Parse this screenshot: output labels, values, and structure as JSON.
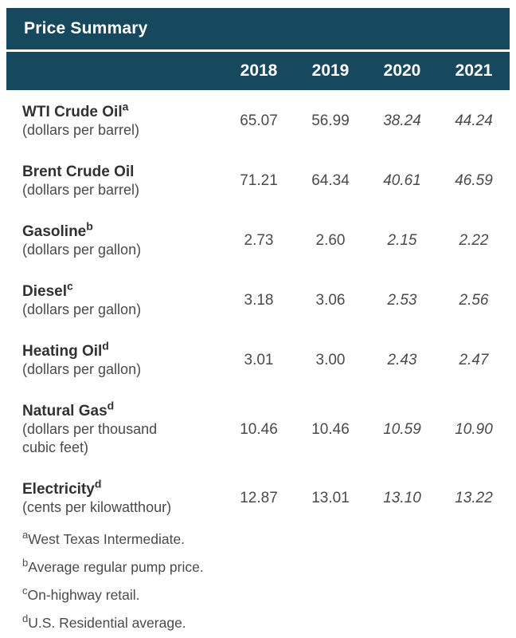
{
  "colors": {
    "header_bg": "#17495E",
    "header_text": "#FFFFFF",
    "label_text": "#313131",
    "body_text": "#4A4A4A"
  },
  "table": {
    "title": "Price Summary",
    "years": [
      "2018",
      "2019",
      "2020",
      "2021"
    ],
    "rows": [
      {
        "name": "WTI Crude Oil",
        "sup": "a",
        "unit": "(dollars per barrel)",
        "values": [
          "65.07",
          "56.99",
          "38.24",
          "44.24"
        ]
      },
      {
        "name": "Brent Crude Oil",
        "sup": "",
        "unit": "(dollars per barrel)",
        "values": [
          "71.21",
          "64.34",
          "40.61",
          "46.59"
        ]
      },
      {
        "name": "Gasoline",
        "sup": "b",
        "unit": "(dollars per gallon)",
        "values": [
          "2.73",
          "2.60",
          "2.15",
          "2.22"
        ]
      },
      {
        "name": "Diesel",
        "sup": "c",
        "unit": "(dollars per gallon)",
        "values": [
          "3.18",
          "3.06",
          "2.53",
          "2.56"
        ]
      },
      {
        "name": "Heating Oil",
        "sup": "d",
        "unit": "(dollars per gallon)",
        "values": [
          "3.01",
          "3.00",
          "2.43",
          "2.47"
        ]
      },
      {
        "name": "Natural Gas",
        "sup": "d",
        "unit": "(dollars per thousand cubic feet)",
        "values": [
          "10.46",
          "10.46",
          "10.59",
          "10.90"
        ]
      },
      {
        "name": "Electricity",
        "sup": "d",
        "unit": "(cents per kilowatthour)",
        "values": [
          "12.87",
          "13.01",
          "13.10",
          "13.22"
        ]
      }
    ],
    "footnotes": [
      {
        "marker": "a",
        "text": "West Texas Intermediate."
      },
      {
        "marker": "b",
        "text": "Average regular pump price."
      },
      {
        "marker": "c",
        "text": "On-highway retail."
      },
      {
        "marker": "d",
        "text": "U.S. Residential average."
      }
    ]
  }
}
